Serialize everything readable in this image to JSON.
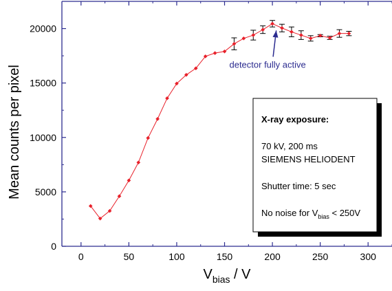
{
  "chart_data": {
    "type": "line",
    "xlabel_main": "V",
    "xlabel_sub": "bias",
    "xlabel_unit": " / V",
    "ylabel": "Mean counts per pixel",
    "xlim": [
      -20,
      325
    ],
    "ylim": [
      0,
      22500
    ],
    "xticks": [
      0,
      50,
      100,
      150,
      200,
      250,
      300
    ],
    "yticks": [
      0,
      5000,
      10000,
      15000,
      20000
    ],
    "series": [
      {
        "color": "#e8202a",
        "x": [
          10,
          20,
          30,
          40,
          50,
          60,
          70,
          80,
          90,
          100,
          110,
          120,
          130,
          140,
          150,
          160,
          170,
          180,
          190,
          200,
          210,
          220,
          230,
          240,
          250,
          260,
          270,
          280
        ],
        "y": [
          3700,
          2550,
          3250,
          4600,
          6050,
          7700,
          9950,
          11700,
          13600,
          14950,
          15750,
          16350,
          17450,
          17750,
          17900,
          18600,
          19100,
          19400,
          19900,
          20450,
          20050,
          19700,
          19400,
          19100,
          19350,
          19150,
          19550,
          19550
        ],
        "err": [
          0,
          0,
          0,
          0,
          0,
          0,
          0,
          0,
          0,
          0,
          0,
          0,
          0,
          0,
          0,
          550,
          0,
          450,
          350,
          300,
          350,
          450,
          400,
          250,
          100,
          150,
          350,
          200
        ]
      }
    ],
    "annotation": {
      "text": "detector fully active",
      "x": 204,
      "y": 19950,
      "text_x": 195,
      "text_y": 16400,
      "color": "#2b2b8f"
    },
    "legend_box": {
      "title": "X-ray exposure:",
      "line1": "70 kV, 200 ms",
      "line2": "SIEMENS HELIODENT",
      "line3": "Shutter time: 5 sec",
      "line4_pre": "No noise for V",
      "line4_sub": "bias",
      "line4_post": " < 250V"
    },
    "grid": false,
    "axis_color": "#2b2b8f"
  }
}
